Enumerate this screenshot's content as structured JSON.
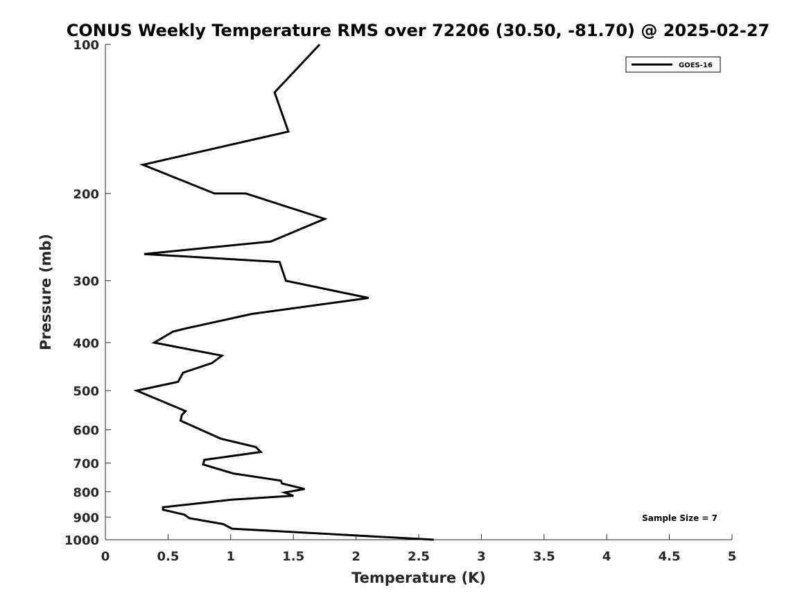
{
  "chart_data": {
    "type": "line",
    "title": "CONUS Weekly Temperature RMS over 72206 (30.50, -81.70) @ 2025-02-27",
    "xlabel": "Temperature (K)",
    "ylabel": "Pressure (mb)",
    "xlim": [
      0,
      5
    ],
    "ylim": [
      1000,
      100
    ],
    "y_scale": "log",
    "y_reversed": true,
    "grid": false,
    "legend_position": "top-right",
    "x_ticks": [
      0,
      0.5,
      1,
      1.5,
      2,
      2.5,
      3,
      3.5,
      4,
      4.5,
      5
    ],
    "x_tick_labels": [
      "0",
      "0.5",
      "1",
      "1.5",
      "2",
      "2.5",
      "3",
      "3.5",
      "4",
      "4.5",
      "5"
    ],
    "y_ticks": [
      100,
      200,
      300,
      400,
      500,
      600,
      700,
      800,
      900,
      1000
    ],
    "y_tick_labels": [
      "100",
      "200",
      "300",
      "400",
      "500",
      "600",
      "700",
      "800",
      "900",
      "1000"
    ],
    "series": [
      {
        "name": "GOES-16",
        "color": "#000000",
        "points": [
          [
            1.71,
            100
          ],
          [
            1.35,
            125
          ],
          [
            1.46,
            150
          ],
          [
            0.3,
            175
          ],
          [
            0.87,
            200
          ],
          [
            1.12,
            200
          ],
          [
            1.75,
            225
          ],
          [
            1.32,
            250
          ],
          [
            0.31,
            265
          ],
          [
            1.39,
            275
          ],
          [
            1.44,
            300
          ],
          [
            2.1,
            325
          ],
          [
            1.17,
            350
          ],
          [
            0.63,
            375
          ],
          [
            0.54,
            380
          ],
          [
            0.39,
            400
          ],
          [
            0.93,
            425
          ],
          [
            0.85,
            440
          ],
          [
            0.62,
            460
          ],
          [
            0.58,
            480
          ],
          [
            0.25,
            500
          ],
          [
            0.64,
            550
          ],
          [
            0.61,
            560
          ],
          [
            0.6,
            575
          ],
          [
            0.92,
            625
          ],
          [
            1.2,
            650
          ],
          [
            1.24,
            665
          ],
          [
            0.79,
            690
          ],
          [
            0.78,
            705
          ],
          [
            1.02,
            735
          ],
          [
            1.4,
            760
          ],
          [
            1.41,
            770
          ],
          [
            1.59,
            790
          ],
          [
            1.43,
            803
          ],
          [
            1.5,
            815
          ],
          [
            1.01,
            830
          ],
          [
            0.46,
            860
          ],
          [
            0.46,
            870
          ],
          [
            0.63,
            890
          ],
          [
            0.67,
            905
          ],
          [
            0.94,
            930
          ],
          [
            1.01,
            950
          ],
          [
            2.62,
            1000
          ]
        ]
      }
    ],
    "annotations": [
      "Sample Size = 7"
    ]
  }
}
